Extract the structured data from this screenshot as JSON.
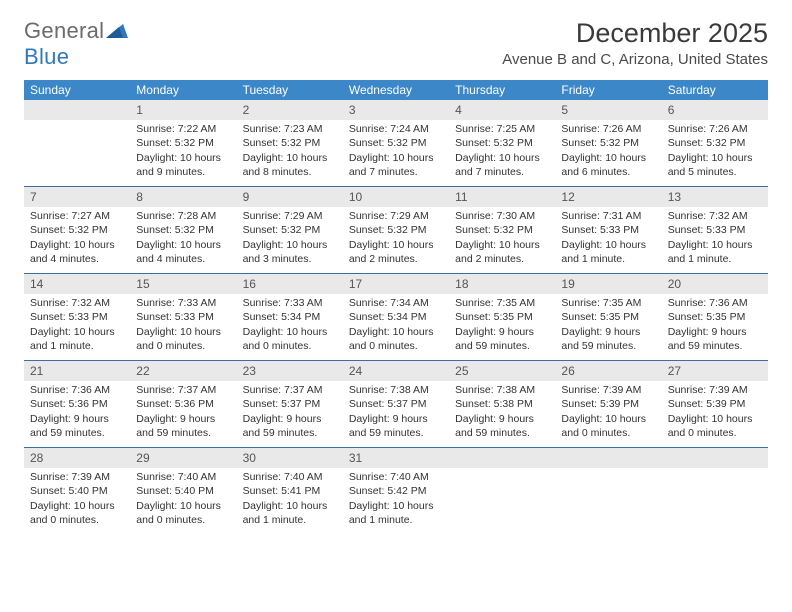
{
  "brand": {
    "part1": "General",
    "part2": "Blue"
  },
  "colors": {
    "header_bg": "#3b87c8",
    "header_text": "#ffffff",
    "daynum_bg": "#e9e9e9",
    "daynum_text": "#555555",
    "week_divider": "#3b6fa0",
    "body_text": "#333333",
    "title_text": "#3a3a3a",
    "logo_gray": "#6b6b6b",
    "logo_blue": "#2f78bd"
  },
  "title": "December 2025",
  "location": "Avenue B and C, Arizona, United States",
  "weekdays": [
    "Sunday",
    "Monday",
    "Tuesday",
    "Wednesday",
    "Thursday",
    "Friday",
    "Saturday"
  ],
  "weeks": [
    [
      {
        "num": "",
        "lines": []
      },
      {
        "num": "1",
        "lines": [
          "Sunrise: 7:22 AM",
          "Sunset: 5:32 PM",
          "Daylight: 10 hours and 9 minutes."
        ]
      },
      {
        "num": "2",
        "lines": [
          "Sunrise: 7:23 AM",
          "Sunset: 5:32 PM",
          "Daylight: 10 hours and 8 minutes."
        ]
      },
      {
        "num": "3",
        "lines": [
          "Sunrise: 7:24 AM",
          "Sunset: 5:32 PM",
          "Daylight: 10 hours and 7 minutes."
        ]
      },
      {
        "num": "4",
        "lines": [
          "Sunrise: 7:25 AM",
          "Sunset: 5:32 PM",
          "Daylight: 10 hours and 7 minutes."
        ]
      },
      {
        "num": "5",
        "lines": [
          "Sunrise: 7:26 AM",
          "Sunset: 5:32 PM",
          "Daylight: 10 hours and 6 minutes."
        ]
      },
      {
        "num": "6",
        "lines": [
          "Sunrise: 7:26 AM",
          "Sunset: 5:32 PM",
          "Daylight: 10 hours and 5 minutes."
        ]
      }
    ],
    [
      {
        "num": "7",
        "lines": [
          "Sunrise: 7:27 AM",
          "Sunset: 5:32 PM",
          "Daylight: 10 hours and 4 minutes."
        ]
      },
      {
        "num": "8",
        "lines": [
          "Sunrise: 7:28 AM",
          "Sunset: 5:32 PM",
          "Daylight: 10 hours and 4 minutes."
        ]
      },
      {
        "num": "9",
        "lines": [
          "Sunrise: 7:29 AM",
          "Sunset: 5:32 PM",
          "Daylight: 10 hours and 3 minutes."
        ]
      },
      {
        "num": "10",
        "lines": [
          "Sunrise: 7:29 AM",
          "Sunset: 5:32 PM",
          "Daylight: 10 hours and 2 minutes."
        ]
      },
      {
        "num": "11",
        "lines": [
          "Sunrise: 7:30 AM",
          "Sunset: 5:32 PM",
          "Daylight: 10 hours and 2 minutes."
        ]
      },
      {
        "num": "12",
        "lines": [
          "Sunrise: 7:31 AM",
          "Sunset: 5:33 PM",
          "Daylight: 10 hours and 1 minute."
        ]
      },
      {
        "num": "13",
        "lines": [
          "Sunrise: 7:32 AM",
          "Sunset: 5:33 PM",
          "Daylight: 10 hours and 1 minute."
        ]
      }
    ],
    [
      {
        "num": "14",
        "lines": [
          "Sunrise: 7:32 AM",
          "Sunset: 5:33 PM",
          "Daylight: 10 hours and 1 minute."
        ]
      },
      {
        "num": "15",
        "lines": [
          "Sunrise: 7:33 AM",
          "Sunset: 5:33 PM",
          "Daylight: 10 hours and 0 minutes."
        ]
      },
      {
        "num": "16",
        "lines": [
          "Sunrise: 7:33 AM",
          "Sunset: 5:34 PM",
          "Daylight: 10 hours and 0 minutes."
        ]
      },
      {
        "num": "17",
        "lines": [
          "Sunrise: 7:34 AM",
          "Sunset: 5:34 PM",
          "Daylight: 10 hours and 0 minutes."
        ]
      },
      {
        "num": "18",
        "lines": [
          "Sunrise: 7:35 AM",
          "Sunset: 5:35 PM",
          "Daylight: 9 hours and 59 minutes."
        ]
      },
      {
        "num": "19",
        "lines": [
          "Sunrise: 7:35 AM",
          "Sunset: 5:35 PM",
          "Daylight: 9 hours and 59 minutes."
        ]
      },
      {
        "num": "20",
        "lines": [
          "Sunrise: 7:36 AM",
          "Sunset: 5:35 PM",
          "Daylight: 9 hours and 59 minutes."
        ]
      }
    ],
    [
      {
        "num": "21",
        "lines": [
          "Sunrise: 7:36 AM",
          "Sunset: 5:36 PM",
          "Daylight: 9 hours and 59 minutes."
        ]
      },
      {
        "num": "22",
        "lines": [
          "Sunrise: 7:37 AM",
          "Sunset: 5:36 PM",
          "Daylight: 9 hours and 59 minutes."
        ]
      },
      {
        "num": "23",
        "lines": [
          "Sunrise: 7:37 AM",
          "Sunset: 5:37 PM",
          "Daylight: 9 hours and 59 minutes."
        ]
      },
      {
        "num": "24",
        "lines": [
          "Sunrise: 7:38 AM",
          "Sunset: 5:37 PM",
          "Daylight: 9 hours and 59 minutes."
        ]
      },
      {
        "num": "25",
        "lines": [
          "Sunrise: 7:38 AM",
          "Sunset: 5:38 PM",
          "Daylight: 9 hours and 59 minutes."
        ]
      },
      {
        "num": "26",
        "lines": [
          "Sunrise: 7:39 AM",
          "Sunset: 5:39 PM",
          "Daylight: 10 hours and 0 minutes."
        ]
      },
      {
        "num": "27",
        "lines": [
          "Sunrise: 7:39 AM",
          "Sunset: 5:39 PM",
          "Daylight: 10 hours and 0 minutes."
        ]
      }
    ],
    [
      {
        "num": "28",
        "lines": [
          "Sunrise: 7:39 AM",
          "Sunset: 5:40 PM",
          "Daylight: 10 hours and 0 minutes."
        ]
      },
      {
        "num": "29",
        "lines": [
          "Sunrise: 7:40 AM",
          "Sunset: 5:40 PM",
          "Daylight: 10 hours and 0 minutes."
        ]
      },
      {
        "num": "30",
        "lines": [
          "Sunrise: 7:40 AM",
          "Sunset: 5:41 PM",
          "Daylight: 10 hours and 1 minute."
        ]
      },
      {
        "num": "31",
        "lines": [
          "Sunrise: 7:40 AM",
          "Sunset: 5:42 PM",
          "Daylight: 10 hours and 1 minute."
        ]
      },
      {
        "num": "",
        "lines": []
      },
      {
        "num": "",
        "lines": []
      },
      {
        "num": "",
        "lines": []
      }
    ]
  ]
}
